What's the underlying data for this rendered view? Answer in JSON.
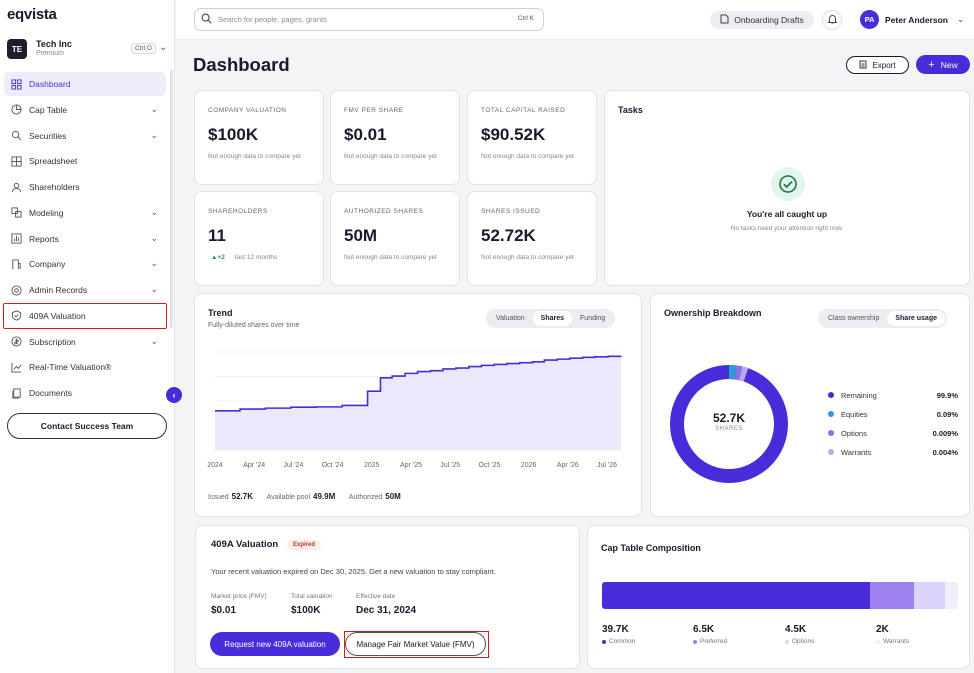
{
  "app": {
    "logo": "eqvista"
  },
  "org": {
    "initials": "TE",
    "name": "Tech Inc",
    "plan": "Premium",
    "shortcut": "Ctrl O"
  },
  "sidebar": {
    "items": [
      {
        "label": "Dashboard",
        "icon": "grid-icon"
      },
      {
        "label": "Cap Table",
        "icon": "pie-chart-icon"
      },
      {
        "label": "Securities",
        "icon": "securities-icon"
      },
      {
        "label": "Spreadsheet",
        "icon": "table-icon"
      },
      {
        "label": "Shareholders",
        "icon": "users-icon"
      },
      {
        "label": "Modeling",
        "icon": "modeling-icon"
      },
      {
        "label": "Reports",
        "icon": "bar-chart-icon"
      },
      {
        "label": "Company",
        "icon": "company-icon"
      },
      {
        "label": "Admin Records",
        "icon": "records-icon"
      },
      {
        "label": "409A Valuation",
        "icon": "shield-check-icon"
      },
      {
        "label": "Subscription",
        "icon": "subscription-icon"
      },
      {
        "label": "Real-Time Valuation®",
        "icon": "trend-line-icon"
      },
      {
        "label": "Documents",
        "icon": "documents-icon"
      }
    ],
    "contact_label": "Contact Success Team"
  },
  "topbar": {
    "search_placeholder": "Search for people, pages, grants",
    "search_shortcut": "Ctrl K",
    "drafts_label": "Onboarding Drafts",
    "user_initials": "PA",
    "user_name": "Peter Anderson"
  },
  "page": {
    "title": "Dashboard",
    "export_label": "Export",
    "new_label": "New"
  },
  "stats": [
    {
      "label": "COMPANY VALUATION",
      "value": "$100K",
      "note": "Not enough data to compare yet"
    },
    {
      "label": "FMV PER SHARE",
      "value": "$0.01",
      "note": "Not enough data to compare yet"
    },
    {
      "label": "TOTAL CAPITAL RAISED",
      "value": "$90.52K",
      "note": "Not enough data to compare yet"
    },
    {
      "label": "SHAREHOLDERS",
      "value": "11",
      "delta": "▲+2",
      "note": "last 12 months"
    },
    {
      "label": "AUTHORIZED SHARES",
      "value": "50M",
      "note": "Not enough data to compare yet"
    },
    {
      "label": "SHARES ISSUED",
      "value": "52.72K",
      "note": "Not enough data to compare yet"
    }
  ],
  "tasks": {
    "title": "Tasks",
    "caught_up": "You're all caught up",
    "sub": "No tasks need your attention right now."
  },
  "trend": {
    "title": "Trend",
    "subtitle": "Fully-diluted shares over time",
    "tabs": [
      "Valuation",
      "Shares",
      "Funding"
    ],
    "active_tab": "Shares",
    "footer": {
      "issued_label": "Issued",
      "issued": "52.7K",
      "pool_label": "Available pool",
      "pool": "49.9M",
      "auth_label": "Authorized",
      "auth": "50M"
    }
  },
  "chart_data": {
    "type": "area",
    "title": "Trend",
    "subtitle": "Fully-diluted shares over time",
    "x_tick_labels": [
      "2024",
      "Apr '24",
      "Jul '24",
      "Oct '24",
      "2025",
      "Apr '25",
      "Jul '25",
      "Oct '25",
      "2026",
      "Apr '26",
      "Jul '26"
    ],
    "x": [
      "2024-01",
      "2024-03",
      "2024-05",
      "2024-07",
      "2024-09",
      "2024-11",
      "2025-01",
      "2025-02",
      "2025-03",
      "2025-04",
      "2025-05",
      "2025-06",
      "2025-07",
      "2025-08",
      "2025-09",
      "2025-10",
      "2025-11",
      "2025-12",
      "2026-01",
      "2026-02",
      "2026-03",
      "2026-04",
      "2026-05",
      "2026-06",
      "2026-07",
      "2026-08",
      "2026-09"
    ],
    "series": [
      {
        "values": [
          22,
          23,
          23.5,
          24,
          24.2,
          25,
          33,
          40.5,
          41.5,
          43,
          44,
          44.5,
          45.5,
          46,
          46.8,
          47.5,
          48,
          48.5,
          49,
          49.5,
          50.5,
          51,
          51.5,
          52,
          52.3,
          52.6,
          52.72
        ]
      }
    ],
    "color": "#4a2bd9",
    "fill": "#ece8fb"
  },
  "ownership": {
    "title": "Ownership Breakdown",
    "tabs": [
      "Class ownership",
      "Share usage"
    ],
    "active_tab": "Share usage",
    "center_value": "52.7K",
    "center_label": "SHARES",
    "legend": [
      {
        "name": "Remaining",
        "value": "99.9%",
        "color": "#4a2bd9"
      },
      {
        "name": "Equities",
        "value": "0.09%",
        "color": "#2d9cdb"
      },
      {
        "name": "Options",
        "value": "0.009%",
        "color": "#8b6fe8"
      },
      {
        "name": "Warrants",
        "value": "0.004%",
        "color": "#b9a8f0"
      }
    ]
  },
  "valuation": {
    "title": "409A Valuation",
    "badge": "Expired",
    "message": "Your recent valuation expired on Dec 30, 2025. Get a new valuation to stay compliant.",
    "fields": [
      {
        "key": "Market price (FMV)",
        "value": "$0.01"
      },
      {
        "key": "Total valuation",
        "value": "$100K"
      },
      {
        "key": "Effective date",
        "value": "Dec 31, 2024"
      }
    ],
    "request_label": "Request new 409A valuation",
    "fmv_label": "Manage Fair Market Value (FMV)"
  },
  "composition": {
    "title": "Cap Table Composition",
    "items": [
      {
        "value": "39.7K",
        "label": "Common",
        "color": "#4a2bd9",
        "share": 0.755
      },
      {
        "value": "6.5K",
        "label": "Preferred",
        "color": "#9b82ee",
        "share": 0.124
      },
      {
        "value": "4.5K",
        "label": "Options",
        "color": "#dcd3fa",
        "share": 0.086
      },
      {
        "value": "2K",
        "label": "Warrants",
        "color": "#f1eefc",
        "share": 0.038
      }
    ]
  }
}
